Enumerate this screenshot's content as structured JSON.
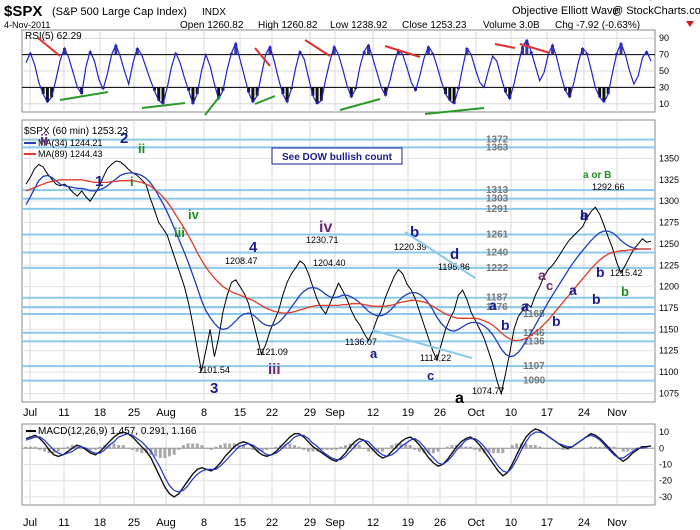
{
  "header": {
    "symbol": "$SPX",
    "name": "(S&P 500 Large Cap Index)",
    "exchange": "INDX",
    "date": "4-Nov-2011",
    "open_label": "Open",
    "open": "1260.82",
    "high_label": "High",
    "high": "1260.82",
    "low_label": "Low",
    "low": "1238.92",
    "close_label": "Close",
    "close": "1253.23",
    "volume_label": "Volume",
    "volume": "3.0B",
    "chg_label": "Chg",
    "chg": "-7.92 (-0.63%)",
    "credit": "Objective Elliott Wave",
    "site": "@ StockCharts.com"
  },
  "colors": {
    "price": "#000000",
    "ma34": "#1f3fbf",
    "ma89": "#e03a28",
    "rsi": "#2222cc",
    "macd": "#111111",
    "signal": "#2233cc",
    "hist": "#a9a9a9",
    "fib_line": "#8cc8ea",
    "red_trend": "#e03030",
    "green_trend": "#2a9a2a",
    "wave_dark": "#1c1c8c",
    "wave_purple": "#6b2b73",
    "wave_green": "#1e8c1e",
    "wave_black": "#000000"
  },
  "chart_data": [
    {
      "type": "line",
      "title": "RSI(5) 62.29",
      "ylim": [
        0,
        100
      ],
      "ticks": [
        "10",
        "30",
        "50",
        "70",
        "90"
      ],
      "overbought": 70,
      "oversold": 30,
      "values": [
        60,
        72,
        58,
        36,
        22,
        12,
        18,
        40,
        63,
        78,
        66,
        48,
        30,
        22,
        55,
        74,
        62,
        40,
        28,
        46,
        70,
        82,
        68,
        50,
        34,
        60,
        78,
        70,
        55,
        40,
        26,
        14,
        10,
        30,
        55,
        72,
        60,
        42,
        26,
        10,
        22,
        50,
        70,
        56,
        34,
        16,
        26,
        52,
        72,
        84,
        64,
        44,
        24,
        12,
        20,
        45,
        70,
        80,
        62,
        40,
        22,
        12,
        28,
        54,
        74,
        64,
        42,
        20,
        10,
        14,
        40,
        62,
        80,
        70,
        52,
        32,
        18,
        28,
        55,
        74,
        82,
        66,
        48,
        30,
        20,
        38,
        60,
        76,
        70,
        54,
        36,
        26,
        44,
        66,
        80,
        72,
        56,
        38,
        22,
        14,
        10,
        28,
        54,
        78,
        70,
        52,
        36,
        30,
        50,
        68,
        62,
        42,
        24,
        16,
        34,
        58,
        80,
        88,
        74,
        56,
        38,
        48,
        70,
        82,
        66,
        44,
        26,
        18,
        36,
        60,
        78,
        72,
        52,
        30,
        18,
        12,
        22,
        48,
        72,
        84,
        70,
        50,
        34,
        44,
        66,
        74,
        62
      ]
    },
    {
      "type": "line",
      "title": "$SPX (60 min) 1253.23",
      "ylim": [
        1065,
        1395
      ],
      "price_ticks": [
        "1075",
        "1100",
        "1125",
        "1150",
        "1175",
        "1200",
        "1225",
        "1250",
        "1275",
        "1300",
        "1325",
        "1350"
      ],
      "x_ticks": [
        "Jul",
        "11",
        "18",
        "25",
        "Aug",
        "8",
        "15",
        "22",
        "29",
        "Sep",
        "12",
        "19",
        "26",
        "Oct",
        "10",
        "17",
        "24",
        "Nov"
      ],
      "series": [
        {
          "name": "$SPX (60 min) 1253.23",
          "values": [
            1320,
            1328,
            1338,
            1343,
            1340,
            1332,
            1326,
            1320,
            1318,
            1320,
            1316,
            1310,
            1306,
            1312,
            1305,
            1300,
            1308,
            1316,
            1328,
            1338,
            1343,
            1347,
            1346,
            1342,
            1337,
            1333,
            1330,
            1325,
            1320,
            1304,
            1290,
            1275,
            1268,
            1260,
            1245,
            1230,
            1215,
            1200,
            1180,
            1155,
            1128,
            1101,
            1125,
            1150,
            1118,
            1140,
            1170,
            1190,
            1205,
            1208,
            1200,
            1192,
            1180,
            1160,
            1140,
            1121,
            1132,
            1148,
            1160,
            1172,
            1190,
            1205,
            1215,
            1222,
            1230,
            1226,
            1215,
            1200,
            1185,
            1175,
            1168,
            1180,
            1192,
            1204,
            1195,
            1185,
            1172,
            1162,
            1155,
            1145,
            1137,
            1148,
            1162,
            1172,
            1188,
            1200,
            1212,
            1220,
            1215,
            1203,
            1196,
            1185,
            1170,
            1155,
            1140,
            1125,
            1114,
            1132,
            1150,
            1162,
            1172,
            1190,
            1196,
            1185,
            1170,
            1160,
            1150,
            1140,
            1125,
            1110,
            1090,
            1075,
            1098,
            1122,
            1150,
            1165,
            1172,
            1180,
            1176,
            1190,
            1200,
            1212,
            1220,
            1225,
            1232,
            1240,
            1248,
            1255,
            1260,
            1265,
            1270,
            1280,
            1288,
            1293,
            1285,
            1272,
            1258,
            1245,
            1228,
            1216,
            1225,
            1235,
            1244,
            1250,
            1256,
            1252,
            1253
          ]
        },
        {
          "name": "MA(34) 1244.21",
          "values": [
            1296,
            1305,
            1315,
            1324,
            1329,
            1330,
            1328,
            1324,
            1320,
            1318,
            1317,
            1316,
            1315,
            1315,
            1314,
            1312,
            1312,
            1313,
            1315,
            1318,
            1322,
            1326,
            1330,
            1332,
            1333,
            1333,
            1332,
            1330,
            1327,
            1322,
            1315,
            1306,
            1297,
            1287,
            1276,
            1264,
            1252,
            1240,
            1227,
            1213,
            1199,
            1184,
            1172,
            1164,
            1157,
            1152,
            1150,
            1151,
            1155,
            1160,
            1165,
            1168,
            1169,
            1167,
            1163,
            1158,
            1155,
            1154,
            1155,
            1158,
            1163,
            1169,
            1176,
            1183,
            1190,
            1195,
            1198,
            1199,
            1198,
            1195,
            1191,
            1188,
            1187,
            1188,
            1190,
            1190,
            1188,
            1185,
            1181,
            1176,
            1171,
            1168,
            1166,
            1166,
            1168,
            1172,
            1177,
            1183,
            1188,
            1191,
            1193,
            1193,
            1191,
            1187,
            1181,
            1173,
            1164,
            1157,
            1152,
            1149,
            1148,
            1150,
            1153,
            1156,
            1158,
            1158,
            1157,
            1154,
            1150,
            1144,
            1136,
            1127,
            1121,
            1118,
            1119,
            1123,
            1130,
            1138,
            1146,
            1155,
            1164,
            1173,
            1182,
            1190,
            1198,
            1206,
            1214,
            1222,
            1229,
            1236,
            1242,
            1248,
            1254,
            1259,
            1263,
            1265,
            1265,
            1263,
            1259,
            1254,
            1250,
            1247,
            1245,
            1244,
            1244,
            1244,
            1244
          ]
        },
        {
          "name": "MA(89) 1244.43",
          "values": [
            1312,
            1314,
            1316,
            1318,
            1320,
            1322,
            1323,
            1324,
            1325,
            1325,
            1325,
            1325,
            1325,
            1325,
            1324,
            1323,
            1322,
            1322,
            1322,
            1322,
            1323,
            1323,
            1324,
            1324,
            1324,
            1324,
            1323,
            1322,
            1320,
            1318,
            1314,
            1310,
            1305,
            1299,
            1292,
            1284,
            1276,
            1268,
            1259,
            1250,
            1240,
            1231,
            1223,
            1216,
            1210,
            1205,
            1200,
            1197,
            1194,
            1192,
            1190,
            1188,
            1186,
            1184,
            1181,
            1178,
            1175,
            1173,
            1171,
            1170,
            1169,
            1169,
            1170,
            1171,
            1173,
            1174,
            1176,
            1177,
            1178,
            1178,
            1178,
            1178,
            1178,
            1178,
            1179,
            1179,
            1180,
            1180,
            1180,
            1179,
            1178,
            1177,
            1177,
            1177,
            1177,
            1178,
            1179,
            1181,
            1182,
            1183,
            1184,
            1184,
            1183,
            1182,
            1180,
            1177,
            1174,
            1171,
            1168,
            1166,
            1164,
            1163,
            1163,
            1163,
            1163,
            1163,
            1162,
            1160,
            1158,
            1155,
            1151,
            1146,
            1142,
            1139,
            1137,
            1137,
            1138,
            1140,
            1143,
            1147,
            1151,
            1156,
            1161,
            1167,
            1173,
            1179,
            1185,
            1191,
            1197,
            1203,
            1209,
            1215,
            1221,
            1226,
            1231,
            1235,
            1238,
            1240,
            1241,
            1242,
            1242,
            1243,
            1243,
            1244,
            1244,
            1244,
            1244
          ]
        }
      ],
      "fib_levels": [
        1090,
        1107,
        1136,
        1146,
        1168,
        1176,
        1187,
        1222,
        1240,
        1261,
        1291,
        1303,
        1313,
        1363,
        1372
      ],
      "price_labels": [
        "1101.54",
        "1121.09",
        "1208.47",
        "1230.71",
        "1220.39",
        "1204.40",
        "1195.86",
        "1136.07",
        "1114.22",
        "1074.77",
        "1292.66",
        "1215.42"
      ],
      "wave_labels": [
        "ii",
        "2",
        "ii",
        "i",
        "1",
        "iv",
        "iii",
        "4",
        "3",
        "iii",
        "iv",
        "b",
        "d",
        "a",
        "c",
        "a",
        "a",
        "b",
        "b",
        "a",
        "b",
        "a",
        "b",
        "c",
        "a or B",
        "a",
        "b",
        "b"
      ],
      "annotation": "See DOW bullish count"
    },
    {
      "type": "line",
      "title": "MACD(12,26,9) 1.457, 0.291, 1.166",
      "ylim": [
        -35,
        15
      ],
      "ticks": [
        "10",
        "0",
        "-10",
        "-20",
        "-30"
      ],
      "series": [
        {
          "name": "MACD",
          "values": [
            6,
            7,
            8,
            6,
            3,
            -1,
            -4,
            -5,
            -4,
            -2,
            0,
            2,
            1,
            -1,
            -3,
            -4,
            -2,
            1,
            4,
            7,
            9,
            10,
            9,
            7,
            4,
            1,
            -2,
            -6,
            -12,
            -18,
            -24,
            -28,
            -30,
            -28,
            -24,
            -20,
            -16,
            -13,
            -12,
            -13,
            -14,
            -12,
            -9,
            -5,
            -2,
            1,
            3,
            4,
            3,
            1,
            -2,
            -4,
            -5,
            -4,
            -2,
            1,
            4,
            7,
            9,
            9,
            7,
            4,
            1,
            -1,
            -3,
            -5,
            -7,
            -8,
            -6,
            -3,
            1,
            4,
            6,
            5,
            2,
            -1,
            -4,
            -6,
            -5,
            -2,
            1,
            4,
            6,
            7,
            5,
            2,
            -2,
            -6,
            -9,
            -11,
            -10,
            -7,
            -3,
            1,
            4,
            6,
            7,
            5,
            2,
            -2,
            -6,
            -10,
            -14,
            -17,
            -15,
            -10,
            -4,
            2,
            7,
            10,
            12,
            11,
            9,
            7,
            5,
            3,
            1,
            0,
            1,
            3,
            5,
            7,
            9,
            8,
            6,
            3,
            0,
            -3,
            -6,
            -8,
            -6,
            -3,
            -1,
            1,
            1,
            1.5
          ]
        },
        {
          "name": "Signal",
          "values": [
            5,
            6,
            7,
            7,
            5,
            2,
            -1,
            -3,
            -4,
            -3,
            -2,
            0,
            1,
            0,
            -2,
            -3,
            -3,
            -1,
            2,
            4,
            7,
            8,
            9,
            8,
            6,
            4,
            1,
            -2,
            -7,
            -12,
            -18,
            -23,
            -26,
            -27,
            -26,
            -23,
            -19,
            -16,
            -14,
            -13,
            -13,
            -13,
            -11,
            -8,
            -5,
            -2,
            1,
            2,
            3,
            2,
            0,
            -2,
            -4,
            -4,
            -3,
            -1,
            2,
            4,
            7,
            8,
            8,
            6,
            3,
            1,
            -2,
            -4,
            -6,
            -7,
            -7,
            -5,
            -2,
            1,
            4,
            5,
            4,
            1,
            -2,
            -4,
            -5,
            -4,
            -2,
            1,
            3,
            5,
            6,
            4,
            1,
            -3,
            -6,
            -9,
            -10,
            -8,
            -5,
            -1,
            2,
            5,
            6,
            6,
            4,
            1,
            -3,
            -7,
            -11,
            -14,
            -15,
            -12,
            -7,
            -1,
            4,
            8,
            10,
            10,
            9,
            7,
            5,
            3,
            2,
            1,
            1,
            3,
            5,
            7,
            8,
            7,
            5,
            2,
            -1,
            -4,
            -6,
            -6,
            -4,
            -2,
            0,
            0.2,
            0.3
          ]
        }
      ]
    }
  ]
}
